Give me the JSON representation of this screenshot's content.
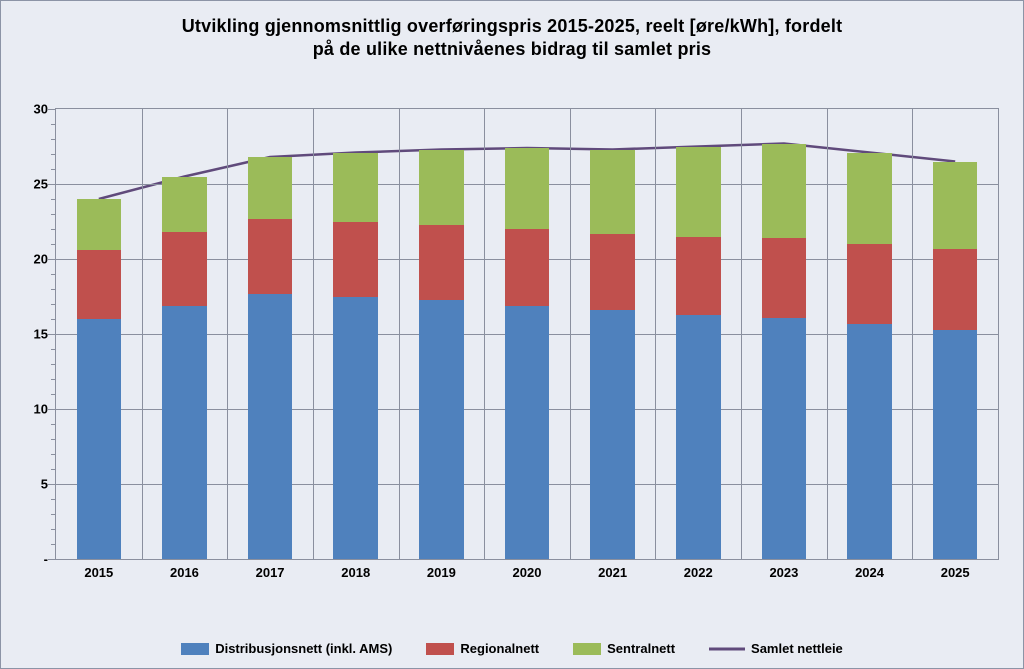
{
  "chart": {
    "type": "stacked-bar-with-line",
    "title_line1": "Utvikling gjennomsnittlig overføringspris 2015-2025, reelt [øre/kWh], fordelt",
    "title_line2": "på de ulike nettnivåenes bidrag til samlet pris",
    "title_fontsize": 18,
    "background_color": "#e9ecf3",
    "plot_border_color": "#8a8f9e",
    "grid_color": "#8a8f9e",
    "categories": [
      "2015",
      "2016",
      "2017",
      "2018",
      "2019",
      "2020",
      "2021",
      "2022",
      "2023",
      "2024",
      "2025"
    ],
    "series": {
      "distribusjonsnett": {
        "label": "Distribusjonsnett (inkl. AMS)",
        "color": "#4f81bd",
        "values": [
          16.0,
          16.9,
          17.7,
          17.5,
          17.3,
          16.9,
          16.6,
          16.3,
          16.1,
          15.7,
          15.3
        ]
      },
      "regionalnett": {
        "label": "Regionalnett",
        "color": "#c0504d",
        "values": [
          4.6,
          4.9,
          5.0,
          5.0,
          5.0,
          5.1,
          5.1,
          5.2,
          5.3,
          5.3,
          5.4
        ]
      },
      "sentralnett": {
        "label": "Sentralnett",
        "color": "#9bbb59",
        "values": [
          3.4,
          3.7,
          4.1,
          4.6,
          5.0,
          5.4,
          5.6,
          6.0,
          6.3,
          6.1,
          5.8
        ]
      }
    },
    "line": {
      "label": "Samlet nettleie",
      "color": "#604a7b",
      "width": 2.5,
      "values": [
        24.0,
        25.5,
        26.8,
        27.1,
        27.3,
        27.4,
        27.3,
        27.5,
        27.7,
        27.1,
        26.5
      ]
    },
    "y_axis": {
      "min": 0,
      "max": 30,
      "major_step": 5,
      "minor_step": 1,
      "major_labels": [
        "-",
        "5",
        "10",
        "15",
        "20",
        "25",
        "30"
      ],
      "label_fontsize": 13
    },
    "x_axis": {
      "label_fontsize": 13
    },
    "bar_width_ratio": 0.52,
    "legend_fontsize": 13
  }
}
